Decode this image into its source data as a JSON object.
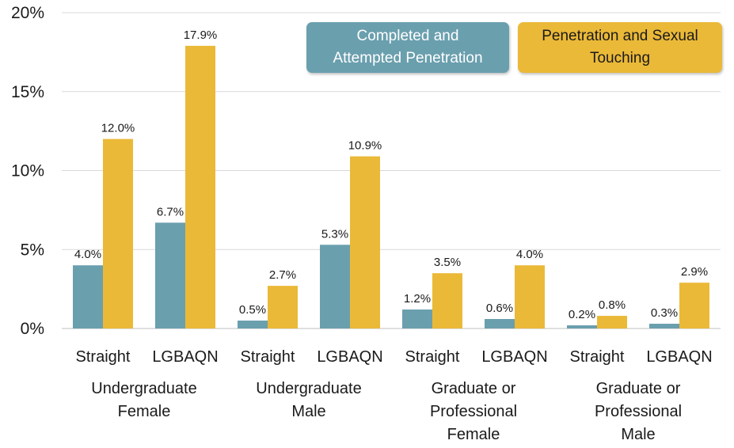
{
  "chart_data": {
    "type": "bar",
    "categories": [
      "Straight",
      "LGBAQN",
      "Straight",
      "LGBAQN",
      "Straight",
      "LGBAQN",
      "Straight",
      "LGBAQN"
    ],
    "groups": [
      {
        "label": "Undergraduate Female",
        "lines": [
          "Undergraduate",
          "Female"
        ]
      },
      {
        "label": "Undergraduate Male",
        "lines": [
          "Undergraduate",
          "Male"
        ]
      },
      {
        "label": "Graduate or Professional Female",
        "lines": [
          "Graduate or",
          "Professional",
          "Female"
        ]
      },
      {
        "label": "Graduate or Professional Male",
        "lines": [
          "Graduate or",
          "Professional",
          "Male"
        ]
      }
    ],
    "series": [
      {
        "name": "Completed and Attempted Penetration",
        "name_lines": [
          "Completed and",
          "Attempted Penetration"
        ],
        "color": "#6a9fae",
        "values": [
          4.0,
          6.7,
          0.5,
          5.3,
          1.2,
          0.6,
          0.2,
          0.3
        ],
        "labels": [
          "4.0%",
          "6.7%",
          "0.5%",
          "5.3%",
          "1.2%",
          "0.6%",
          "0.2%",
          "0.3%"
        ]
      },
      {
        "name": "Penetration and Sexual Touching",
        "name_lines": [
          "Penetration and Sexual",
          "Touching"
        ],
        "color": "#ebb938",
        "values": [
          12.0,
          17.9,
          2.7,
          10.9,
          3.5,
          4.0,
          0.8,
          2.9
        ],
        "labels": [
          "12.0%",
          "17.9%",
          "2.7%",
          "10.9%",
          "3.5%",
          "4.0%",
          "0.8%",
          "2.9%"
        ]
      }
    ],
    "ylim": [
      0,
      20
    ],
    "yticks": [
      0,
      5,
      10,
      15,
      20
    ],
    "ytick_labels": [
      "0%",
      "5%",
      "10%",
      "15%",
      "20%"
    ],
    "grid": true,
    "legend_position": "top-right",
    "title": "",
    "xlabel": "",
    "ylabel": ""
  }
}
